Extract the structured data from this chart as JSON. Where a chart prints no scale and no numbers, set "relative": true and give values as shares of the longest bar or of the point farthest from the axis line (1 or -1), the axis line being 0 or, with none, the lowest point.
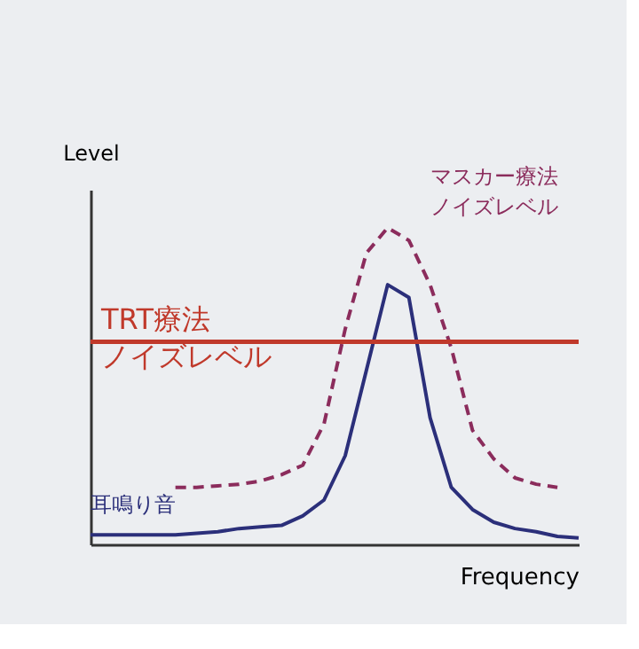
{
  "chart_data": {
    "type": "line",
    "relative": true,
    "xlabel": "Frequency",
    "ylabel": "Level",
    "tick_labels": false,
    "grid": false,
    "legend": false,
    "categories": [
      null,
      null,
      null,
      null,
      null,
      null,
      null,
      null,
      null,
      null,
      null,
      null,
      null,
      null,
      null,
      null,
      null,
      null,
      null,
      null,
      null,
      null,
      null,
      null
    ],
    "series": [
      {
        "name": "耳鳴り音",
        "color": "#2b2f7a",
        "line_style": "solid",
        "values": [
          0.03,
          0.03,
          0.03,
          0.03,
          0.03,
          0.035,
          0.04,
          0.05,
          0.055,
          0.06,
          0.09,
          0.14,
          0.28,
          0.55,
          0.82,
          0.78,
          0.4,
          0.18,
          0.11,
          0.07,
          0.05,
          0.04,
          0.025,
          0.02
        ]
      },
      {
        "name": "マスカー療法ノイズレベル",
        "color": "#8b2c5c",
        "line_style": "dashed",
        "values": [
          null,
          null,
          null,
          null,
          0.18,
          0.18,
          0.185,
          0.19,
          0.2,
          0.22,
          0.25,
          0.38,
          0.68,
          0.92,
          1.0,
          0.96,
          0.82,
          0.62,
          0.36,
          0.27,
          0.21,
          0.19,
          0.18,
          null
        ]
      },
      {
        "name": "TRT療法ノイズレベル",
        "color": "#c0392b",
        "line_style": "solid",
        "values": [
          0.64,
          0.64,
          0.64,
          0.64,
          0.64,
          0.64,
          0.64,
          0.64,
          0.64,
          0.64,
          0.64,
          0.64,
          0.64,
          0.64,
          0.64,
          0.64,
          0.64,
          0.64,
          0.64,
          0.64,
          0.64,
          0.64,
          0.64,
          0.64
        ]
      }
    ]
  }
}
